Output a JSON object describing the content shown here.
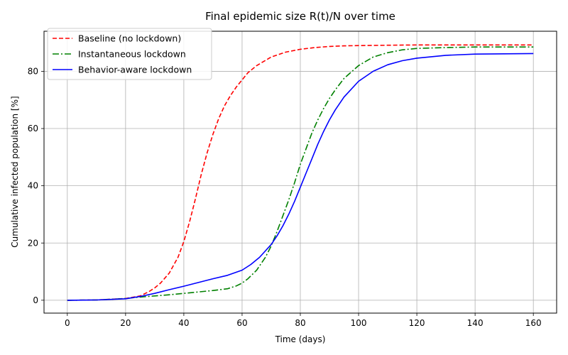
{
  "chart_data": {
    "type": "line",
    "title": "Final epidemic size R(t)/N over time",
    "xlabel": "Time (days)",
    "ylabel": "Cumulative infected population [%]",
    "xlim": [
      -8,
      168
    ],
    "ylim": [
      -4.5,
      94
    ],
    "xticks": [
      0,
      20,
      40,
      60,
      80,
      100,
      120,
      140,
      160
    ],
    "yticks": [
      0,
      20,
      40,
      60,
      80
    ],
    "grid": true,
    "legend_position": "top-left",
    "series": [
      {
        "name": "Baseline (no lockdown)",
        "color": "#ff0000",
        "style": "dashed",
        "x": [
          0,
          10,
          20,
          25,
          28,
          30,
          32,
          35,
          38,
          40,
          42,
          44,
          46,
          48,
          50,
          52,
          54,
          56,
          58,
          60,
          62,
          65,
          70,
          75,
          80,
          85,
          90,
          95,
          100,
          110,
          120,
          140,
          160
        ],
        "y": [
          0,
          0.1,
          0.6,
          1.5,
          3,
          4.3,
          6,
          9.5,
          15,
          20.5,
          27.5,
          35.5,
          44,
          51.5,
          58,
          63.5,
          68,
          71.5,
          74.5,
          77,
          79.5,
          82,
          85,
          86.7,
          87.7,
          88.3,
          88.7,
          88.9,
          89,
          89.1,
          89.2,
          89.2,
          89.2
        ]
      },
      {
        "name": "Instantaneous lockdown",
        "color": "#008000",
        "style": "dashdot",
        "x": [
          0,
          10,
          20,
          25,
          30,
          35,
          40,
          45,
          50,
          55,
          58,
          60,
          62,
          65,
          68,
          70,
          72,
          74,
          76,
          78,
          80,
          82,
          84,
          86,
          88,
          90,
          92,
          95,
          100,
          105,
          110,
          115,
          120,
          130,
          140,
          160
        ],
        "y": [
          0,
          0.1,
          0.6,
          1.1,
          1.5,
          1.9,
          2.4,
          2.9,
          3.4,
          4,
          5,
          6,
          7.5,
          10.5,
          15,
          19,
          24,
          29.5,
          35,
          41,
          47.5,
          53,
          58.5,
          63,
          67,
          70.5,
          73.5,
          77.5,
          82,
          85,
          86.5,
          87.5,
          88,
          88.3,
          88.5,
          88.5
        ]
      },
      {
        "name": "Behavior-aware lockdown",
        "color": "#0000ff",
        "style": "solid",
        "x": [
          0,
          10,
          20,
          25,
          30,
          35,
          40,
          45,
          50,
          55,
          60,
          63,
          66,
          70,
          72,
          74,
          76,
          78,
          80,
          82,
          84,
          86,
          88,
          90,
          92,
          95,
          100,
          105,
          110,
          115,
          120,
          130,
          140,
          160
        ],
        "y": [
          0,
          0.1,
          0.5,
          1.3,
          2.4,
          3.7,
          4.9,
          6.2,
          7.5,
          8.7,
          10.5,
          12.5,
          15,
          19.5,
          22.5,
          26,
          30,
          34.5,
          39.5,
          44.5,
          49.5,
          54.5,
          59,
          63,
          66.5,
          71,
          76.5,
          80,
          82.3,
          83.7,
          84.6,
          85.6,
          86,
          86.2
        ]
      }
    ]
  }
}
